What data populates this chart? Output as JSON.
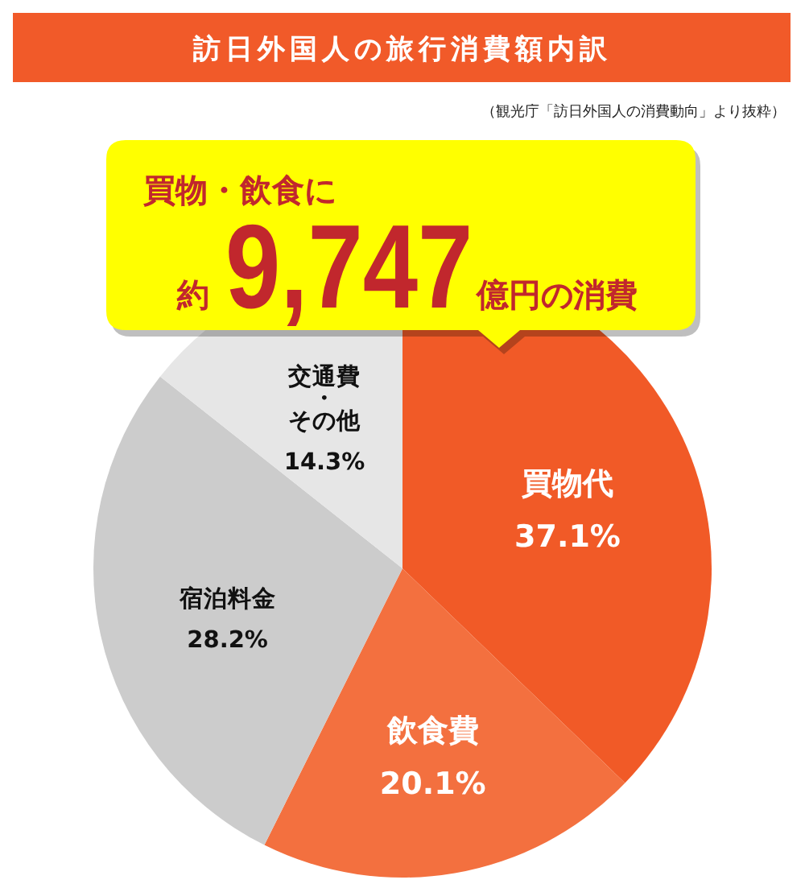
{
  "chart_data": {
    "type": "pie",
    "title": "訪日外国人の旅行消費額内訳",
    "categories": [
      "買物代",
      "飲食費",
      "宿泊料金",
      "交通費・その他"
    ],
    "values": [
      37.1,
      20.1,
      28.2,
      14.3
    ],
    "colors": [
      "#f15a27",
      "#f3703f",
      "#cccccc",
      "#e6e6e6"
    ],
    "value_labels": [
      "37.1%",
      "20.1%",
      "28.2%",
      "14.3%"
    ],
    "annotations": [
      "（観光庁「訪日外国人の消費動向」より抜粋）",
      "買物・飲食に",
      "約",
      "9,747",
      "億円の消費"
    ]
  }
}
